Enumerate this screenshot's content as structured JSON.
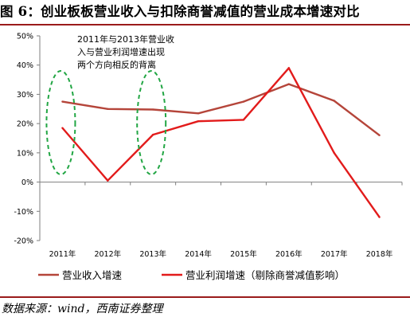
{
  "title": "图 6：创业板板营业收入与扣除商誉减值的营业成本增速对比",
  "source": "数据来源：wind，西南证券整理",
  "colors": {
    "revenue": "#b5453a",
    "profit": "#e21b1b",
    "ellipse": "#22a644",
    "rule": "#9a1b1b"
  },
  "chart_data": {
    "type": "line",
    "categories": [
      "2011年",
      "2012年",
      "2013年",
      "2014年",
      "2015年",
      "2016年",
      "2017年",
      "2018年"
    ],
    "y_ticks": [
      "50%",
      "40%",
      "30%",
      "20%",
      "10%",
      "0%",
      "-10%",
      "-20%"
    ],
    "ylim": [
      -20,
      50
    ],
    "unit": "%",
    "grid": false,
    "legend_position": "bottom",
    "series": [
      {
        "name": "营业收入增速",
        "color": "#b5453a",
        "values": [
          27.5,
          25,
          24.8,
          23.5,
          27.5,
          33.5,
          27.8,
          16
        ]
      },
      {
        "name": "营业利润增速（剔除商誉减值影响）",
        "color": "#e21b1b",
        "values": [
          18.5,
          0.5,
          16.2,
          20.8,
          21.3,
          39,
          10,
          -12
        ]
      }
    ],
    "annotation": [
      "2011年与2013年营业收",
      "入与营业利润增速出现",
      "两个方向相反的背离"
    ]
  }
}
